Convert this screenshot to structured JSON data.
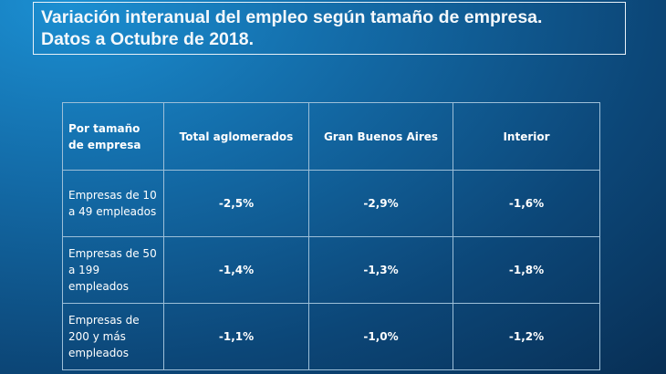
{
  "header": {
    "title": [
      "Variación interanual del empleo según tamaño de empresa.",
      "Datos a Octubre de 2018."
    ]
  },
  "table": {
    "columns": [
      "Por tamaño de empresa",
      "Total aglomerados",
      "Gran Buenos Aires",
      "Interior"
    ],
    "rows": [
      [
        "Empresas de 10 a 49 empleados",
        "-2,5%",
        "-2,9%",
        "-1,6%"
      ],
      [
        "Empresas de 50 a 199 empleados",
        "-1,4%",
        "-1,3%",
        "-1,8%"
      ],
      [
        "Empresas de 200 y más empleados",
        "-1,1%",
        "-1,0%",
        "-1,2%"
      ]
    ]
  }
}
